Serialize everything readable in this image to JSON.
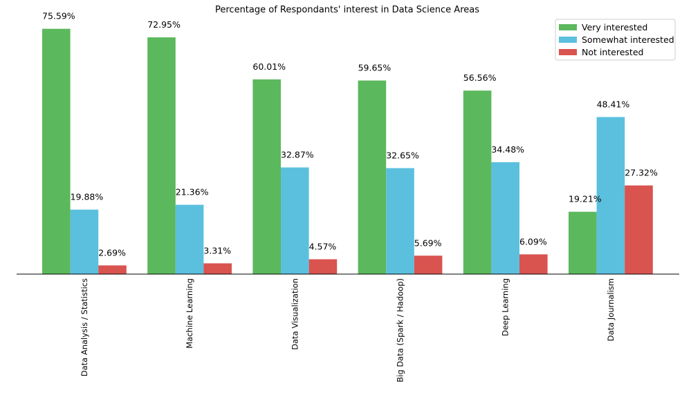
{
  "chart_data": {
    "type": "bar",
    "title": "Percentage of Respondants' interest in Data Science Areas",
    "xlabel": "",
    "ylabel": "",
    "categories": [
      "Data Analysis / Statistics",
      "Machine Learning",
      "Data Visualization",
      "Big Data (Spark / Hadoop)",
      "Deep Learning",
      "Data Journalism"
    ],
    "series": [
      {
        "name": "Very interested",
        "color": "#5cb85c",
        "values": [
          75.59,
          72.95,
          60.01,
          59.65,
          56.56,
          19.21
        ]
      },
      {
        "name": "Somewhat interested",
        "color": "#5bc0de",
        "values": [
          19.88,
          21.36,
          32.87,
          32.65,
          34.48,
          48.41
        ]
      },
      {
        "name": "Not interested",
        "color": "#d9534f",
        "values": [
          2.69,
          3.31,
          4.57,
          5.69,
          6.09,
          27.32
        ]
      }
    ],
    "value_suffix": "%",
    "ylim": [
      0,
      80
    ],
    "grid": false,
    "legend": "top-right"
  }
}
